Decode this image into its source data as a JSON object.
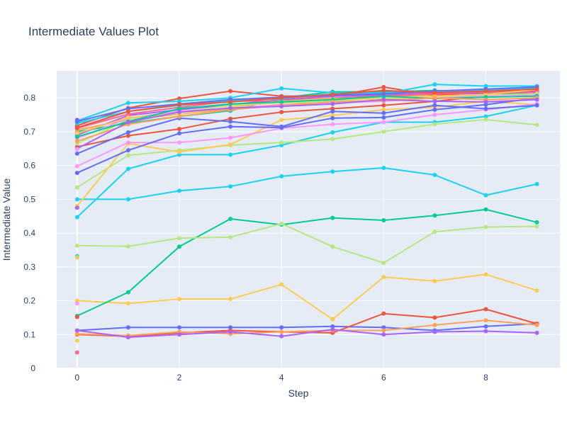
{
  "chart_data": {
    "type": "line",
    "title": "Intermediate Values Plot",
    "xlabel": "Step",
    "ylabel": "Intermediate Value",
    "xlim": [
      -0.4,
      9.45
    ],
    "ylim": [
      0,
      0.88
    ],
    "x_ticks": [
      0,
      2,
      4,
      6,
      8
    ],
    "y_ticks": [
      0,
      0.1,
      0.2,
      0.3,
      0.4,
      0.5,
      0.6,
      0.7,
      0.8
    ],
    "y_tick_labels": [
      "0",
      "0.1",
      "0.2",
      "0.3",
      "0.4",
      "0.5",
      "0.6",
      "0.7",
      "0.8"
    ],
    "grid": true,
    "legend": false,
    "plot_bg": "#e5ecf6",
    "series": [
      {
        "color": "#636efa",
        "x": [
          0,
          1,
          2,
          3,
          4,
          5,
          6,
          7,
          8,
          9
        ],
        "y": [
          0.112,
          0.121,
          0.121,
          0.121,
          0.121,
          0.124,
          0.121,
          0.112,
          0.124,
          0.132
        ]
      },
      {
        "color": "#ef553b",
        "x": [
          0,
          1,
          2,
          3,
          4,
          5,
          6,
          7,
          8,
          9
        ],
        "y": [
          0.1,
          0.095,
          0.105,
          0.112,
          0.108,
          0.105,
          0.162,
          0.15,
          0.175,
          0.132
        ]
      },
      {
        "color": "#ffa15a",
        "x": [
          0,
          1,
          2,
          3,
          4,
          5,
          6,
          7,
          8,
          9
        ],
        "y": [
          0.102,
          0.097,
          0.108,
          0.102,
          0.108,
          0.112,
          0.112,
          0.128,
          0.142,
          0.128
        ]
      },
      {
        "color": "#ab63fa",
        "x": [
          0,
          1,
          2,
          3,
          4,
          5,
          6,
          7,
          8,
          9
        ],
        "y": [
          0.112,
          0.092,
          0.1,
          0.108,
          0.095,
          0.115,
          0.1,
          0.108,
          0.11,
          0.105
        ]
      },
      {
        "color": "#fecb52",
        "x": [
          0,
          1,
          2,
          3,
          4,
          5,
          6,
          7,
          8,
          9
        ],
        "y": [
          0.2,
          0.192,
          0.205,
          0.205,
          0.248,
          0.145,
          0.27,
          0.258,
          0.278,
          0.23
        ]
      },
      {
        "color": "#00cc96",
        "x": [
          0,
          1,
          2,
          3,
          4,
          5,
          6,
          7,
          8,
          9
        ],
        "y": [
          0.155,
          0.225,
          0.36,
          0.442,
          0.425,
          0.445,
          0.438,
          0.452,
          0.47,
          0.432
        ]
      },
      {
        "color": "#b6e880",
        "x": [
          0,
          1,
          2,
          3,
          4,
          5,
          6,
          7,
          8,
          9
        ],
        "y": [
          0.363,
          0.361,
          0.385,
          0.388,
          0.428,
          0.36,
          0.312,
          0.404,
          0.418,
          0.42
        ]
      },
      {
        "color": "#19d3f3",
        "x": [
          0,
          1,
          2,
          3,
          4,
          5,
          6,
          7,
          8,
          9
        ],
        "y": [
          0.5,
          0.5,
          0.525,
          0.538,
          0.568,
          0.582,
          0.593,
          0.572,
          0.512,
          0.545
        ]
      },
      {
        "color": "#19d3f3",
        "x": [
          0,
          1,
          2,
          3,
          4,
          5,
          6,
          7,
          8,
          9
        ],
        "y": [
          0.447,
          0.59,
          0.632,
          0.632,
          0.66,
          0.698,
          0.728,
          0.728,
          0.745,
          0.778
        ]
      },
      {
        "color": "#b6e880",
        "x": [
          0,
          1,
          2,
          3,
          4,
          5,
          6,
          7,
          8,
          9
        ],
        "y": [
          0.535,
          0.63,
          0.645,
          0.66,
          0.668,
          0.678,
          0.7,
          0.722,
          0.736,
          0.72
        ]
      },
      {
        "color": "#fecb52",
        "x": [
          0,
          1,
          2,
          3,
          4,
          5,
          6,
          7,
          8,
          9
        ],
        "y": [
          0.48,
          0.665,
          0.64,
          0.662,
          0.735,
          0.748,
          0.765,
          0.772,
          0.79,
          0.78
        ]
      },
      {
        "color": "#ff97ff",
        "x": [
          0,
          1,
          2,
          3,
          4,
          5,
          6,
          7,
          8,
          9
        ],
        "y": [
          0.598,
          0.668,
          0.668,
          0.682,
          0.71,
          0.722,
          0.728,
          0.75,
          0.765,
          0.782
        ]
      },
      {
        "color": "#636efa",
        "x": [
          0,
          1,
          2,
          3,
          4,
          5,
          6,
          7,
          8,
          9
        ],
        "y": [
          0.578,
          0.645,
          0.695,
          0.715,
          0.712,
          0.74,
          0.742,
          0.765,
          0.78,
          0.8
        ]
      },
      {
        "color": "#ef553b",
        "x": [
          0,
          1,
          2,
          3,
          4,
          5,
          6,
          7,
          8,
          9
        ],
        "y": [
          0.655,
          0.688,
          0.708,
          0.738,
          0.758,
          0.768,
          0.778,
          0.79,
          0.805,
          0.818
        ]
      },
      {
        "color": "#636efa",
        "x": [
          0,
          1,
          2,
          3,
          4,
          5,
          6,
          7,
          8,
          9
        ],
        "y": [
          0.635,
          0.698,
          0.74,
          0.73,
          0.715,
          0.76,
          0.755,
          0.778,
          0.768,
          0.778
        ]
      },
      {
        "color": "#00cc96",
        "x": [
          0,
          1,
          2,
          3,
          4,
          5,
          6,
          7,
          8,
          9
        ],
        "y": [
          0.7,
          0.725,
          0.745,
          0.762,
          0.8,
          0.818,
          0.818,
          0.822,
          0.815,
          0.81
        ]
      },
      {
        "color": "#ffa15a",
        "x": [
          0,
          1,
          2,
          3,
          4,
          5,
          6,
          7,
          8,
          9
        ],
        "y": [
          0.705,
          0.735,
          0.752,
          0.768,
          0.778,
          0.792,
          0.802,
          0.808,
          0.812,
          0.82
        ]
      },
      {
        "color": "#ef553b",
        "x": [
          0,
          1,
          2,
          3,
          4,
          5,
          6,
          7,
          8,
          9
        ],
        "y": [
          0.718,
          0.77,
          0.798,
          0.82,
          0.805,
          0.805,
          0.832,
          0.808,
          0.818,
          0.822
        ]
      },
      {
        "color": "#19d3f3",
        "x": [
          0,
          1,
          2,
          3,
          4,
          5,
          6,
          7,
          8,
          9
        ],
        "y": [
          0.732,
          0.785,
          0.79,
          0.8,
          0.828,
          0.815,
          0.812,
          0.84,
          0.835,
          0.835
        ]
      },
      {
        "color": "#ab63fa",
        "x": [
          0,
          1,
          2,
          3,
          4,
          5,
          6,
          7,
          8,
          9
        ],
        "y": [
          0.69,
          0.748,
          0.765,
          0.78,
          0.795,
          0.805,
          0.808,
          0.815,
          0.812,
          0.818
        ]
      },
      {
        "color": "#ff6692",
        "x": [
          0,
          1,
          2,
          3,
          4,
          5,
          6,
          7,
          8,
          9
        ],
        "y": [
          0.71,
          0.752,
          0.772,
          0.79,
          0.792,
          0.8,
          0.805,
          0.812,
          0.818,
          0.815
        ]
      },
      {
        "color": "#b6e880",
        "x": [
          0,
          1,
          2,
          3,
          4,
          5,
          6,
          7,
          8,
          9
        ],
        "y": [
          0.665,
          0.735,
          0.758,
          0.778,
          0.785,
          0.79,
          0.8,
          0.805,
          0.808,
          0.812
        ]
      },
      {
        "color": "#ff97ff",
        "x": [
          0,
          1,
          2,
          3,
          4,
          5,
          6,
          7,
          8,
          9
        ],
        "y": [
          0.68,
          0.74,
          0.76,
          0.77,
          0.78,
          0.785,
          0.79,
          0.8,
          0.805,
          0.808
        ]
      },
      {
        "color": "#fecb52",
        "x": [
          0,
          1,
          2,
          3,
          4,
          5,
          6,
          7,
          8,
          9
        ],
        "y": [
          0.695,
          0.742,
          0.752,
          0.772,
          0.79,
          0.798,
          0.795,
          0.805,
          0.81,
          0.825
        ]
      },
      {
        "color": "#00cc96",
        "x": [
          0,
          1,
          2,
          3,
          4,
          5,
          6,
          7,
          8,
          9
        ],
        "y": [
          0.685,
          0.73,
          0.768,
          0.782,
          0.788,
          0.795,
          0.805,
          0.798,
          0.802,
          0.805
        ]
      },
      {
        "color": "#19d3f3",
        "x": [
          0,
          1,
          2,
          3,
          4,
          5,
          6,
          7,
          8,
          9
        ],
        "y": [
          0.725,
          0.76,
          0.778,
          0.792,
          0.798,
          0.812,
          0.815,
          0.818,
          0.822,
          0.83
        ]
      },
      {
        "color": "#636efa",
        "x": [
          0,
          1,
          2,
          3,
          4,
          5,
          6,
          7,
          8,
          9
        ],
        "y": [
          0.73,
          0.768,
          0.782,
          0.795,
          0.802,
          0.808,
          0.812,
          0.82,
          0.826,
          0.832
        ]
      },
      {
        "color": "#ef553b",
        "x": [
          0,
          1,
          2,
          3,
          4,
          5,
          6,
          7,
          8,
          9
        ],
        "y": [
          0.712,
          0.76,
          0.78,
          0.788,
          0.8,
          0.81,
          0.822,
          0.815,
          0.82,
          0.826
        ]
      },
      {
        "color": "#ffa15a",
        "x": [
          0,
          1,
          2,
          3,
          4,
          5,
          6,
          7,
          8,
          9
        ],
        "y": [
          0.672,
          0.722,
          0.745,
          0.765,
          0.778,
          0.788,
          0.792,
          0.8,
          0.795,
          0.8
        ]
      },
      {
        "color": "#ab63fa",
        "x": [
          0,
          1,
          2,
          3,
          4,
          5,
          6,
          7,
          8,
          9
        ],
        "y": [
          0.65,
          0.728,
          0.758,
          0.77,
          0.775,
          0.782,
          0.795,
          0.79,
          0.788,
          0.795
        ]
      }
    ],
    "points": [
      {
        "color": "#636efa",
        "x": 0,
        "y": 0.735
      },
      {
        "color": "#ff97ff",
        "x": 0,
        "y": 0.192
      },
      {
        "color": "#ef553b",
        "x": 0,
        "y": 0.152
      },
      {
        "color": "#ff6692",
        "x": 0,
        "y": 0.047
      },
      {
        "color": "#fecb52",
        "x": 0,
        "y": 0.082
      },
      {
        "color": "#ab63fa",
        "x": 0,
        "y": 0.475
      },
      {
        "color": "#19d3f3",
        "x": 0,
        "y": 0.332
      },
      {
        "color": "#fecb52",
        "x": 0,
        "y": 0.328
      },
      {
        "color": "#ff97ff",
        "x": 0,
        "y": 0.648
      }
    ]
  }
}
